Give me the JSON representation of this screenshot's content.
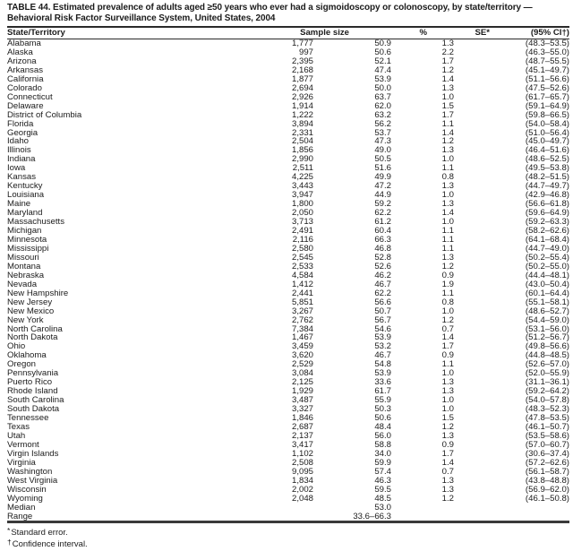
{
  "table": {
    "title_line1": "TABLE 44. Estimated prevalence of adults aged ≥50 years who ever had a sigmoidoscopy or colonoscopy, by state/territory —",
    "title_line2": "Behavioral Risk Factor Surveillance System, United States, 2004",
    "columns": [
      "State/Territory",
      "Sample size",
      "%",
      "SE*",
      "(95% CI†)"
    ],
    "rows": [
      [
        "Alabama",
        "1,777",
        "50.9",
        "1.3",
        "(48.3–53.5)"
      ],
      [
        "Alaska",
        "997",
        "50.6",
        "2.2",
        "(46.3–55.0)"
      ],
      [
        "Arizona",
        "2,395",
        "52.1",
        "1.7",
        "(48.7–55.5)"
      ],
      [
        "Arkansas",
        "2,168",
        "47.4",
        "1.2",
        "(45.1–49.7)"
      ],
      [
        "California",
        "1,877",
        "53.9",
        "1.4",
        "(51.1–56.6)"
      ],
      [
        "Colorado",
        "2,694",
        "50.0",
        "1.3",
        "(47.5–52.6)"
      ],
      [
        "Connecticut",
        "2,926",
        "63.7",
        "1.0",
        "(61.7–65.7)"
      ],
      [
        "Delaware",
        "1,914",
        "62.0",
        "1.5",
        "(59.1–64.9)"
      ],
      [
        "District of Columbia",
        "1,222",
        "63.2",
        "1.7",
        "(59.8–66.5)"
      ],
      [
        "Florida",
        "3,894",
        "56.2",
        "1.1",
        "(54.0–58.4)"
      ],
      [
        "Georgia",
        "2,331",
        "53.7",
        "1.4",
        "(51.0–56.4)"
      ],
      [
        "Idaho",
        "2,504",
        "47.3",
        "1.2",
        "(45.0–49.7)"
      ],
      [
        "Illinois",
        "1,856",
        "49.0",
        "1.3",
        "(46.4–51.6)"
      ],
      [
        "Indiana",
        "2,990",
        "50.5",
        "1.0",
        "(48.6–52.5)"
      ],
      [
        "Iowa",
        "2,511",
        "51.6",
        "1.1",
        "(49.5–53.8)"
      ],
      [
        "Kansas",
        "4,225",
        "49.9",
        "0.8",
        "(48.2–51.5)"
      ],
      [
        "Kentucky",
        "3,443",
        "47.2",
        "1.3",
        "(44.7–49.7)"
      ],
      [
        "Louisiana",
        "3,947",
        "44.9",
        "1.0",
        "(42.9–46.8)"
      ],
      [
        "Maine",
        "1,800",
        "59.2",
        "1.3",
        "(56.6–61.8)"
      ],
      [
        "Maryland",
        "2,050",
        "62.2",
        "1.4",
        "(59.6–64.9)"
      ],
      [
        "Massachusetts",
        "3,713",
        "61.2",
        "1.0",
        "(59.2–63.3)"
      ],
      [
        "Michigan",
        "2,491",
        "60.4",
        "1.1",
        "(58.2–62.6)"
      ],
      [
        "Minnesota",
        "2,116",
        "66.3",
        "1.1",
        "(64.1–68.4)"
      ],
      [
        "Mississippi",
        "2,580",
        "46.8",
        "1.1",
        "(44.7–49.0)"
      ],
      [
        "Missouri",
        "2,545",
        "52.8",
        "1.3",
        "(50.2–55.4)"
      ],
      [
        "Montana",
        "2,533",
        "52.6",
        "1.2",
        "(50.2–55.0)"
      ],
      [
        "Nebraska",
        "4,584",
        "46.2",
        "0.9",
        "(44.4–48.1)"
      ],
      [
        "Nevada",
        "1,412",
        "46.7",
        "1.9",
        "(43.0–50.4)"
      ],
      [
        "New Hampshire",
        "2,441",
        "62.2",
        "1.1",
        "(60.1–64.4)"
      ],
      [
        "New Jersey",
        "5,851",
        "56.6",
        "0.8",
        "(55.1–58.1)"
      ],
      [
        "New Mexico",
        "3,267",
        "50.7",
        "1.0",
        "(48.6–52.7)"
      ],
      [
        "New York",
        "2,762",
        "56.7",
        "1.2",
        "(54.4–59.0)"
      ],
      [
        "North Carolina",
        "7,384",
        "54.6",
        "0.7",
        "(53.1–56.0)"
      ],
      [
        "North Dakota",
        "1,467",
        "53.9",
        "1.4",
        "(51.2–56.7)"
      ],
      [
        "Ohio",
        "3,459",
        "53.2",
        "1.7",
        "(49.8–56.6)"
      ],
      [
        "Oklahoma",
        "3,620",
        "46.7",
        "0.9",
        "(44.8–48.5)"
      ],
      [
        "Oregon",
        "2,529",
        "54.8",
        "1.1",
        "(52.6–57.0)"
      ],
      [
        "Pennsylvania",
        "3,084",
        "53.9",
        "1.0",
        "(52.0–55.9)"
      ],
      [
        "Puerto Rico",
        "2,125",
        "33.6",
        "1.3",
        "(31.1–36.1)"
      ],
      [
        "Rhode Island",
        "1,929",
        "61.7",
        "1.3",
        "(59.2–64.2)"
      ],
      [
        "South Carolina",
        "3,487",
        "55.9",
        "1.0",
        "(54.0–57.8)"
      ],
      [
        "South Dakota",
        "3,327",
        "50.3",
        "1.0",
        "(48.3–52.3)"
      ],
      [
        "Tennessee",
        "1,846",
        "50.6",
        "1.5",
        "(47.8–53.5)"
      ],
      [
        "Texas",
        "2,687",
        "48.4",
        "1.2",
        "(46.1–50.7)"
      ],
      [
        "Utah",
        "2,137",
        "56.0",
        "1.3",
        "(53.5–58.6)"
      ],
      [
        "Vermont",
        "3,417",
        "58.8",
        "0.9",
        "(57.0–60.7)"
      ],
      [
        "Virgin Islands",
        "1,102",
        "34.0",
        "1.7",
        "(30.6–37.4)"
      ],
      [
        "Virginia",
        "2,508",
        "59.9",
        "1.4",
        "(57.2–62.6)"
      ],
      [
        "Washington",
        "9,095",
        "57.4",
        "0.7",
        "(56.1–58.7)"
      ],
      [
        "West Virginia",
        "1,834",
        "46.3",
        "1.3",
        "(43.8–48.8)"
      ],
      [
        "Wisconsin",
        "2,002",
        "59.5",
        "1.3",
        "(56.9–62.0)"
      ],
      [
        "Wyoming",
        "2,048",
        "48.5",
        "1.2",
        "(46.1–50.8)"
      ]
    ],
    "summary_rows": [
      [
        "Median",
        "",
        "53.0",
        "",
        ""
      ],
      [
        "Range",
        "",
        "33.6–66.3",
        "",
        ""
      ]
    ],
    "footnotes": [
      {
        "marker": "*",
        "text": "Standard error."
      },
      {
        "marker": "†",
        "text": "Confidence interval."
      }
    ]
  }
}
